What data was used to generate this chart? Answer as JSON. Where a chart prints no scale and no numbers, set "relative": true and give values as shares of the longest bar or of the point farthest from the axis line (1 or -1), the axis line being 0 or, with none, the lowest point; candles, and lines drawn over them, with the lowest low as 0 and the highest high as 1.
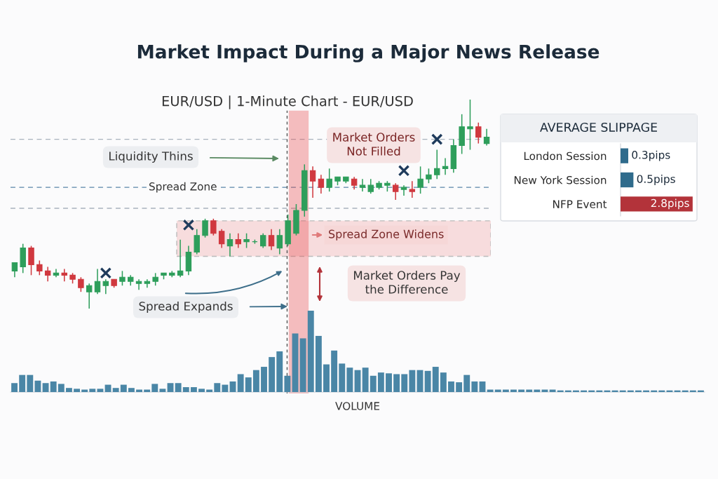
{
  "chart_data": [
    {
      "type": "candlestick",
      "title": "Market Impact During a Major News Release",
      "subtitle": "EUR/USD | 1-Minute Chart - EUR/USD",
      "relative": true,
      "categories": [
        null,
        null,
        null,
        null,
        null,
        null,
        null,
        null,
        null,
        null,
        null,
        null,
        null,
        null,
        null,
        null,
        null,
        null,
        null,
        null,
        null,
        null,
        null,
        null,
        null,
        null,
        null,
        null,
        null,
        null,
        null,
        null,
        null,
        null,
        null,
        null,
        null,
        null,
        null,
        null,
        null,
        null,
        null,
        null,
        null,
        null,
        null,
        null,
        null,
        null,
        null,
        null,
        null,
        null,
        null,
        null,
        null,
        null
      ],
      "ohlc": [
        [
          0.18,
          0.22,
          0.15,
          0.22
        ],
        [
          0.2,
          0.31,
          0.17,
          0.29
        ],
        [
          0.29,
          0.3,
          0.16,
          0.21
        ],
        [
          0.21,
          0.23,
          0.16,
          0.18
        ],
        [
          0.18,
          0.2,
          0.13,
          0.16
        ],
        [
          0.16,
          0.19,
          0.15,
          0.17
        ],
        [
          0.17,
          0.19,
          0.13,
          0.16
        ],
        [
          0.16,
          0.17,
          0.12,
          0.14
        ],
        [
          0.14,
          0.15,
          0.08,
          0.1
        ],
        [
          0.08,
          0.12,
          0,
          0.11
        ],
        [
          0.08,
          0.19,
          0.07,
          0.13
        ],
        [
          0.11,
          0.14,
          0.07,
          0.13
        ],
        [
          0.14,
          0.14,
          0.1,
          0.11
        ],
        [
          0.13,
          0.18,
          0.11,
          0.15
        ],
        [
          0.13,
          0.16,
          0.11,
          0.15
        ],
        [
          0.12,
          0.14,
          0.09,
          0.13
        ],
        [
          0.12,
          0.14,
          0.1,
          0.13
        ],
        [
          0.13,
          0.17,
          0.11,
          0.15
        ],
        [
          0.16,
          0.17,
          0.14,
          0.17
        ],
        [
          0.16,
          0.18,
          0.15,
          0.17
        ],
        [
          0.16,
          0.33,
          0.15,
          0.18
        ],
        [
          0.18,
          0.3,
          0.16,
          0.27
        ],
        [
          0.27,
          0.38,
          0.26,
          0.35
        ],
        [
          0.35,
          0.43,
          0.34,
          0.42
        ],
        [
          0.42,
          0.43,
          0.35,
          0.36
        ],
        [
          0.37,
          0.38,
          0.29,
          0.31
        ],
        [
          0.3,
          0.36,
          0.25,
          0.33
        ],
        [
          0.33,
          0.36,
          0.29,
          0.31
        ],
        [
          0.32,
          0.36,
          0.29,
          0.33
        ],
        [
          0.32,
          0.33,
          0.31,
          0.32
        ],
        [
          0.3,
          0.36,
          0.29,
          0.35
        ],
        [
          0.35,
          0.38,
          0.28,
          0.3
        ],
        [
          0.29,
          0.38,
          0.26,
          0.35
        ],
        [
          0.31,
          0.45,
          0.3,
          0.42
        ],
        [
          0.36,
          0.5,
          0.35,
          0.47
        ],
        [
          0.47,
          0.69,
          0.44,
          0.66
        ],
        [
          0.66,
          0.68,
          0.53,
          0.61
        ],
        [
          0.62,
          0.64,
          0.55,
          0.58
        ],
        [
          0.58,
          0.67,
          0.56,
          0.62
        ],
        [
          0.61,
          0.63,
          0.59,
          0.63
        ],
        [
          0.61,
          0.63,
          0.6,
          0.63
        ],
        [
          0.62,
          0.63,
          0.57,
          0.59
        ],
        [
          0.58,
          0.62,
          0.56,
          0.59
        ],
        [
          0.56,
          0.62,
          0.55,
          0.59
        ],
        [
          0.58,
          0.61,
          0.57,
          0.6
        ],
        [
          0.59,
          0.61,
          0.56,
          0.6
        ],
        [
          0.59,
          0.6,
          0.52,
          0.56
        ],
        [
          0.57,
          0.59,
          0.54,
          0.58
        ],
        [
          0.57,
          0.61,
          0.53,
          0.56
        ],
        [
          0.58,
          0.68,
          0.55,
          0.62
        ],
        [
          0.62,
          0.67,
          0.6,
          0.64
        ],
        [
          0.64,
          0.76,
          0.62,
          0.67
        ],
        [
          0.67,
          0.72,
          0.64,
          0.68
        ],
        [
          0.67,
          0.81,
          0.65,
          0.78
        ],
        [
          0.78,
          0.93,
          0.74,
          0.87
        ],
        [
          0.86,
          1,
          0.76,
          0.87
        ],
        [
          0.87,
          0.89,
          0.79,
          0.82
        ],
        [
          0.79,
          0.86,
          0.78,
          0.82
        ]
      ],
      "colors": [
        "#2e9e5b",
        "#2e9e5b",
        "#d0383f",
        "#d0383f",
        "#d0383f",
        "#2e9e5b",
        "#d0383f",
        "#d0383f",
        "#d0383f",
        "#2e9e5b",
        "#2e9e5b",
        "#2e9e5b",
        "#d0383f",
        "#2e9e5b",
        "#2e9e5b",
        "#2e9e5b",
        "#2e9e5b",
        "#2e9e5b",
        "#2e9e5b",
        "#2e9e5b",
        "#2e9e5b",
        "#2e9e5b",
        "#2e9e5b",
        "#2e9e5b",
        "#d0383f",
        "#d0383f",
        "#2e9e5b",
        "#d0383f",
        "#2e9e5b",
        "#2e9e5b",
        "#2e9e5b",
        "#d0383f",
        "#2e9e5b",
        "#2e9e5b",
        "#2e9e5b",
        "#2e9e5b",
        "#d0383f",
        "#d0383f",
        "#2e9e5b",
        "#2e9e5b",
        "#2e9e5b",
        "#d0383f",
        "#2e9e5b",
        "#2e9e5b",
        "#2e9e5b",
        "#2e9e5b",
        "#d0383f",
        "#2e9e5b",
        "#d0383f",
        "#2e9e5b",
        "#2e9e5b",
        "#2e9e5b",
        "#2e9e5b",
        "#2e9e5b",
        "#2e9e5b",
        "#2e9e5b",
        "#d0383f",
        "#2e9e5b"
      ],
      "series": [
        {
          "type": "scatter",
          "marker": "cross",
          "color": "#1f3b5c",
          "values": [
            null,
            null,
            null,
            null,
            null,
            null,
            null,
            null,
            null,
            null,
            null,
            0.17,
            null,
            null,
            null,
            null,
            null,
            null,
            null,
            null,
            null,
            0.4,
            null,
            null,
            null,
            null,
            null,
            null,
            null,
            null,
            null,
            null,
            null,
            null,
            null,
            null,
            null,
            null,
            null,
            null,
            null,
            null,
            null,
            null,
            null,
            null,
            null,
            0.66,
            null,
            null,
            null,
            0.81,
            null,
            null,
            null,
            null,
            null,
            null
          ]
        }
      ],
      "ref_lines": [
        {
          "axis": "y",
          "value": 0.81,
          "color": "#a9b3bd",
          "line_style": "dashed"
        },
        {
          "axis": "y",
          "value": 0.58,
          "label": "Spread Zone",
          "color": "#5b86a8",
          "line_style": "dashed"
        },
        {
          "axis": "y",
          "value": 0.48,
          "color": "#a9b3bd",
          "line_style": "dashed"
        }
      ],
      "bands": [
        {
          "axis": "y",
          "from": 0.25,
          "to": 0.42,
          "label": "Spread Zone Widens",
          "color": "#f4c4c4"
        }
      ],
      "annotations": [
        "Liquidity Thins",
        "Market Orders\nNot Filled",
        "Market Orders Pay\nthe Difference",
        "Spread Expands"
      ]
    },
    {
      "type": "bar",
      "relative": true,
      "xlabel": "VOLUME",
      "color": "#4a86a6",
      "categories": [
        null,
        null,
        null,
        null,
        null,
        null,
        null,
        null,
        null,
        null,
        null,
        null,
        null,
        null,
        null,
        null,
        null,
        null,
        null,
        null,
        null,
        null,
        null,
        null,
        null,
        null,
        null,
        null,
        null,
        null,
        null,
        null,
        null,
        null,
        null,
        null,
        null,
        null,
        null,
        null,
        null,
        null,
        null,
        null,
        null,
        null,
        null,
        null,
        null,
        null,
        null,
        null,
        null,
        null,
        null,
        null,
        null,
        null,
        null,
        null,
        null,
        null,
        null,
        null,
        null,
        null,
        null,
        null,
        null,
        null,
        null,
        null,
        null,
        null,
        null,
        null,
        null,
        null,
        null,
        null,
        null,
        null,
        null,
        null,
        null,
        null,
        null,
        null,
        null
      ],
      "values": [
        0.11,
        0.21,
        0.21,
        0.14,
        0.11,
        0.13,
        0.1,
        0.05,
        0.04,
        0.03,
        0.04,
        0.04,
        0.09,
        0.05,
        0.09,
        0.05,
        0.03,
        0.03,
        0.1,
        0.04,
        0.11,
        0.11,
        0.06,
        0.06,
        0.04,
        0.03,
        0.11,
        0.09,
        0.13,
        0.22,
        0.18,
        0.27,
        0.31,
        0.43,
        0.5,
        0.2,
        0.72,
        0.66,
        1,
        0.69,
        0.34,
        0.51,
        0.35,
        0.3,
        0.27,
        0.3,
        0.2,
        0.24,
        0.23,
        0.22,
        0.22,
        0.27,
        0.27,
        0.26,
        0.31,
        0.24,
        0.13,
        0.12,
        0.21,
        0.13,
        0.13,
        0.03,
        0.03,
        0.03,
        0.03,
        0.03,
        0.03,
        0.03,
        0.03,
        0.03,
        0.02,
        0.02,
        0.02,
        0.02,
        0.02,
        0.02,
        0.02,
        0.02,
        0.02,
        0.02,
        0.02,
        0.02,
        0.02,
        0.02,
        0.02,
        0.02,
        0.02,
        0.02,
        0.02
      ]
    },
    {
      "type": "bar",
      "orientation": "horizontal",
      "title": "AVERAGE SLIPPAGE",
      "tick_labels": "y",
      "categories": [
        "London Session",
        "New York Session",
        "NFP Event"
      ],
      "values": [
        0.3,
        0.5,
        2.8
      ],
      "colors": [
        "#2f6b8c",
        "#2f6b8c",
        "#b3333a"
      ],
      "value_labels": [
        "0.3pips",
        "0.5pips",
        "2.8pips"
      ]
    }
  ]
}
